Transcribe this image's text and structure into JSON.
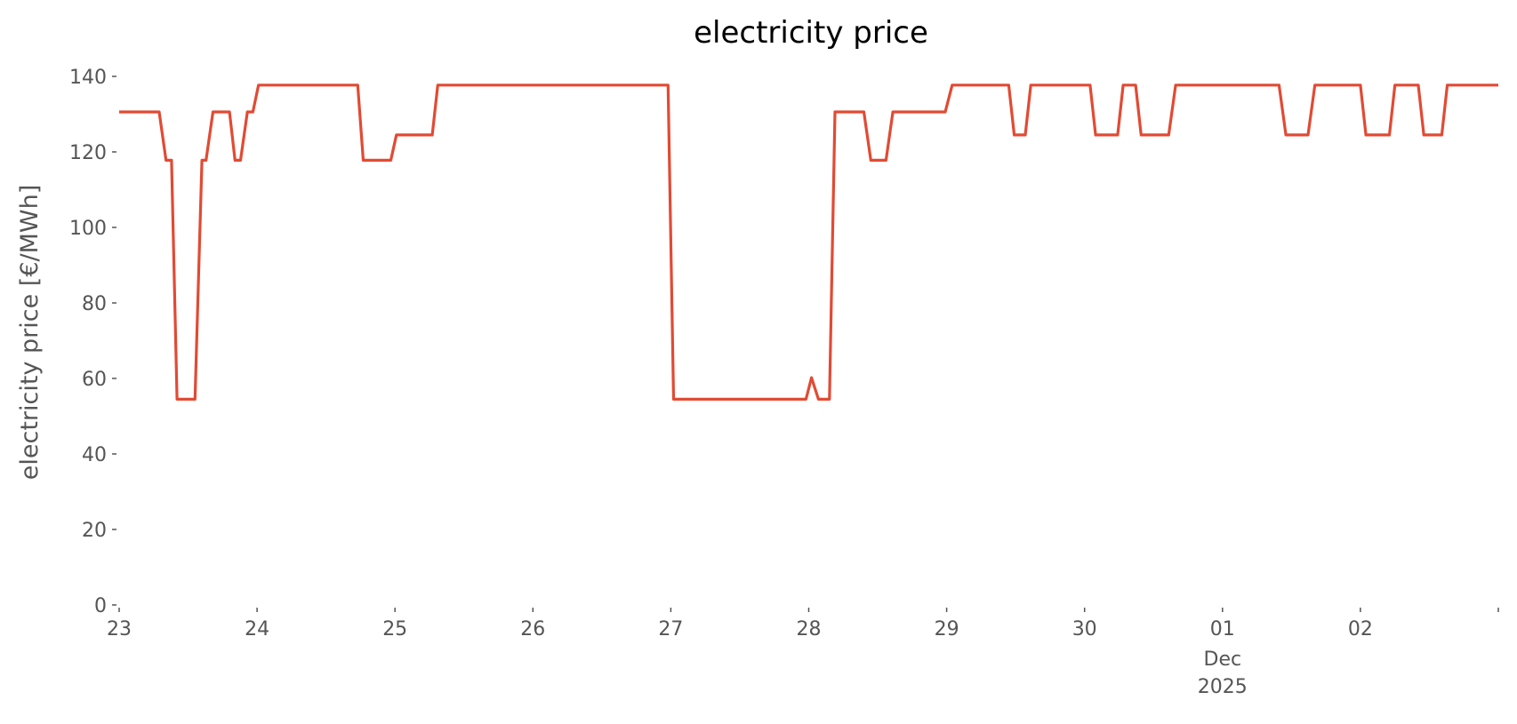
{
  "chart_data": {
    "type": "line",
    "title": "electricity price",
    "ylabel": "electricity price [€/MWh]",
    "xlim": [
      0,
      10
    ],
    "ylim": [
      0,
      140
    ],
    "xticks": [
      {
        "value": 0,
        "label": "23"
      },
      {
        "value": 1,
        "label": "24"
      },
      {
        "value": 2,
        "label": "25"
      },
      {
        "value": 3,
        "label": "26"
      },
      {
        "value": 4,
        "label": "27"
      },
      {
        "value": 5,
        "label": "28"
      },
      {
        "value": 6,
        "label": "29"
      },
      {
        "value": 7,
        "label": "30"
      },
      {
        "value": 8,
        "label": "01"
      },
      {
        "value": 9,
        "label": "02"
      }
    ],
    "x_tick_sublabels": [
      "Dec",
      "2025"
    ],
    "yticks": [
      0,
      20,
      40,
      60,
      80,
      100,
      120,
      140
    ],
    "grid": false,
    "series": [
      {
        "name": "electricity price",
        "color": "#E24A33",
        "x": [
          0,
          0.29,
          0.34,
          0.38,
          0.42,
          0.55,
          0.6,
          0.63,
          0.68,
          0.8,
          0.84,
          0.88,
          0.93,
          0.97,
          1.01,
          1.73,
          1.77,
          1.97,
          2.01,
          2.27,
          2.31,
          3.98,
          4.02,
          4.98,
          5.02,
          5.07,
          5.15,
          5.19,
          5.4,
          5.45,
          5.56,
          5.61,
          5.99,
          6.04,
          6.45,
          6.49,
          6.57,
          6.61,
          7.04,
          7.08,
          7.24,
          7.28,
          7.37,
          7.41,
          7.61,
          7.66,
          8.41,
          8.46,
          8.62,
          8.67,
          9.0,
          9.04,
          9.21,
          9.25,
          9.42,
          9.46,
          9.59,
          9.63,
          10
        ],
        "values": [
          130.6,
          130.6,
          117.8,
          117.8,
          54.5,
          54.5,
          117.8,
          117.8,
          130.6,
          130.6,
          117.8,
          117.8,
          130.6,
          130.6,
          137.7,
          137.7,
          117.8,
          117.8,
          124.5,
          124.5,
          137.7,
          137.7,
          54.5,
          54.5,
          60.2,
          54.5,
          54.5,
          130.6,
          130.6,
          117.8,
          117.8,
          130.6,
          130.6,
          137.7,
          137.7,
          124.5,
          124.5,
          137.7,
          137.7,
          124.5,
          124.5,
          137.7,
          137.7,
          124.5,
          124.5,
          137.7,
          137.7,
          124.5,
          124.5,
          137.7,
          137.7,
          124.5,
          124.5,
          137.7,
          137.7,
          124.5,
          124.5,
          137.7,
          137.7
        ]
      }
    ]
  }
}
